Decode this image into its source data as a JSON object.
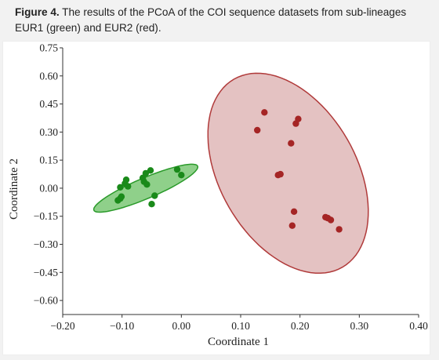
{
  "caption": {
    "label": "Figure 4.",
    "text": " The results of the PCoA of the COI sequence datasets from sub-lineages EUR1 (green) and EUR2 (red)."
  },
  "chart_data": {
    "type": "scatter",
    "title": "",
    "xlabel": "Coordinate 1",
    "ylabel": "Coordinate 2",
    "xlim": [
      -0.2,
      0.4
    ],
    "ylim": [
      -0.675,
      0.75
    ],
    "xticks": [
      -0.2,
      -0.1,
      0.0,
      0.1,
      0.2,
      0.3,
      0.4
    ],
    "xtick_labels": [
      "−0.20",
      "−0.10",
      "0.00",
      "0.10",
      "0.20",
      "0.30",
      "0.40"
    ],
    "yticks": [
      0.75,
      0.6,
      0.45,
      0.3,
      0.15,
      0.0,
      -0.15,
      -0.3,
      -0.45,
      -0.6
    ],
    "ytick_labels": [
      "0.75",
      "0.60",
      "0.45",
      "0.30",
      "0.15",
      "0.00",
      "−0.15",
      "−0.30",
      "−0.45",
      "−0.60"
    ],
    "grid": false,
    "legend": false,
    "series": [
      {
        "name": "EUR1",
        "color": "#1a8a1a",
        "ellipse_fill": "#8fd08a",
        "ellipse_stroke": "#2a9a2a",
        "ellipse": {
          "cx": -0.06,
          "cy": 0.0,
          "rx": 0.095,
          "ry": 0.055,
          "angle_deg": 23
        },
        "points": [
          {
            "x": -0.107,
            "y": -0.065
          },
          {
            "x": -0.103,
            "y": -0.055
          },
          {
            "x": -0.101,
            "y": -0.045
          },
          {
            "x": -0.103,
            "y": 0.005
          },
          {
            "x": -0.095,
            "y": 0.025
          },
          {
            "x": -0.093,
            "y": 0.045
          },
          {
            "x": -0.09,
            "y": 0.01
          },
          {
            "x": -0.065,
            "y": 0.055
          },
          {
            "x": -0.063,
            "y": 0.035
          },
          {
            "x": -0.06,
            "y": 0.08
          },
          {
            "x": -0.058,
            "y": 0.02
          },
          {
            "x": -0.052,
            "y": 0.095
          },
          {
            "x": -0.05,
            "y": -0.085
          },
          {
            "x": -0.045,
            "y": -0.04
          },
          {
            "x": -0.007,
            "y": 0.1
          },
          {
            "x": 0.0,
            "y": 0.07
          }
        ]
      },
      {
        "name": "EUR2",
        "color": "#a52525",
        "ellipse_fill": "#e4c2c2",
        "ellipse_stroke": "#b03a3a",
        "ellipse": {
          "cx": 0.18,
          "cy": 0.08,
          "rx": 0.115,
          "ry": 0.58,
          "angle_deg": 30
        },
        "points": [
          {
            "x": 0.128,
            "y": 0.31
          },
          {
            "x": 0.14,
            "y": 0.405
          },
          {
            "x": 0.163,
            "y": 0.07
          },
          {
            "x": 0.167,
            "y": 0.075
          },
          {
            "x": 0.185,
            "y": 0.24
          },
          {
            "x": 0.187,
            "y": -0.2
          },
          {
            "x": 0.19,
            "y": -0.125
          },
          {
            "x": 0.193,
            "y": 0.345
          },
          {
            "x": 0.197,
            "y": 0.37
          },
          {
            "x": 0.243,
            "y": -0.155
          },
          {
            "x": 0.247,
            "y": -0.16
          },
          {
            "x": 0.252,
            "y": -0.17
          },
          {
            "x": 0.266,
            "y": -0.22
          }
        ]
      }
    ]
  }
}
